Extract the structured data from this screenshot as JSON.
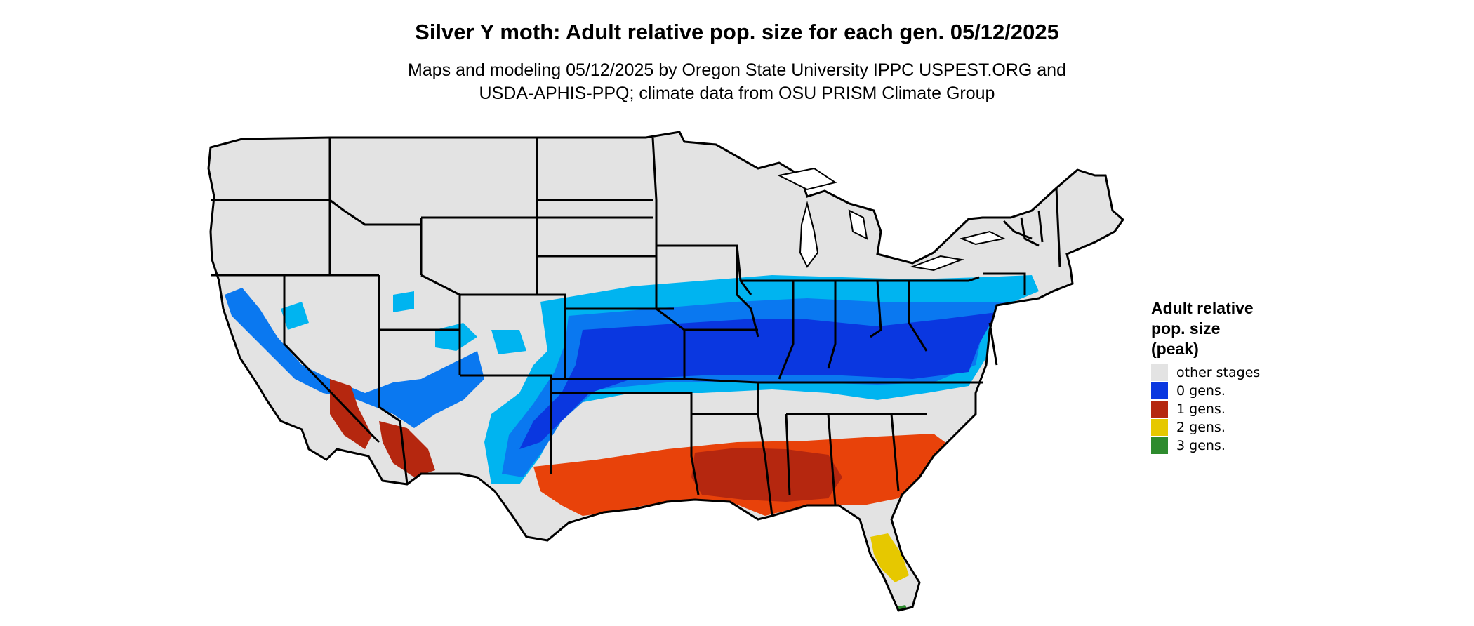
{
  "title": "Silver Y moth: Adult relative pop. size for each gen. 05/12/2025",
  "subtitle_lines": [
    "Maps and modeling 05/12/2025 by Oregon State University IPPC USPEST.ORG and",
    "USDA-APHIS-PPQ; climate data from OSU PRISM Climate Group"
  ],
  "legend": {
    "title_lines": [
      "Adult relative",
      "pop. size",
      "(peak)"
    ],
    "items": [
      {
        "label": "other stages",
        "color": "#e3e3e3"
      },
      {
        "label": "0 gens.",
        "color": "#0a37e0"
      },
      {
        "label": "1 gens.",
        "color": "#b5270f"
      },
      {
        "label": "2 gens.",
        "color": "#e6c800"
      },
      {
        "label": "3 gens.",
        "color": "#2e8b2e"
      }
    ]
  },
  "map": {
    "region": "contiguous United States",
    "base_color": "#e3e3e3",
    "border_color": "#000000",
    "band_colors": {
      "zero_gen_light": "#00b4f0",
      "zero_gen_mid": "#0a78f0",
      "zero_gen_dark": "#0a37e0",
      "one_gen_dark": "#b5270f",
      "one_gen_light": "#e8420a",
      "two_gen": "#e6c800",
      "three_gen": "#2e8b2e"
    }
  }
}
